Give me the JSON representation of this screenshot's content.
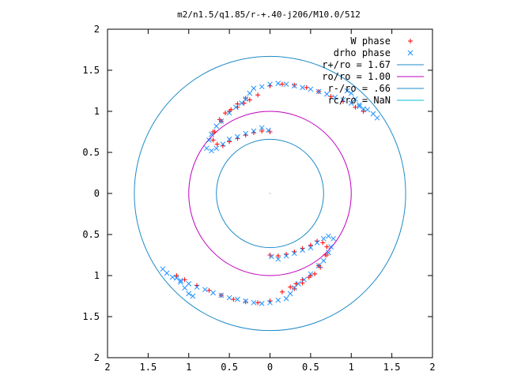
{
  "chart_data": {
    "type": "scatter",
    "title": "m2/n1.5/q1.85/r-+.40-j206/M10.0/512",
    "xlim": [
      -2,
      2
    ],
    "ylim": [
      -2,
      2
    ],
    "x_tick_labels": [
      "2",
      "1.5",
      "1",
      "0.5",
      "0",
      "0.5",
      "1",
      "1.5",
      "2"
    ],
    "y_tick_labels": [
      "2",
      "1.5",
      "1",
      "0.5",
      "0",
      "0.5",
      "1",
      "1.5",
      "2"
    ],
    "tick_values": [
      -2,
      -1.5,
      -1,
      -0.5,
      0,
      0.5,
      1,
      1.5,
      2
    ],
    "grid": false,
    "legend_position": "top-right",
    "legend": [
      {
        "label": "W phase",
        "marker": "plus",
        "color": "#ff0000"
      },
      {
        "label": "drho phase",
        "marker": "cross",
        "color": "#1e90ff"
      },
      {
        "label": "r+/ro = 1.67",
        "marker": "line",
        "color": "#1f8bc8"
      },
      {
        "label": "ro/ro = 1.00",
        "marker": "line",
        "color": "#c000c0"
      },
      {
        "label": "r-/ro = .66",
        "marker": "line",
        "color": "#1f8bc8"
      },
      {
        "label": "rc/ro = NaN",
        "marker": "line",
        "color": "#00c0d8"
      }
    ],
    "circles": [
      {
        "name": "r+/ro = 1.67",
        "r": 1.67,
        "color": "#1f8bc8"
      },
      {
        "name": "ro/ro = 1.00",
        "r": 1.0,
        "color": "#c000c0"
      },
      {
        "name": "r-/ro = .66",
        "r": 0.66,
        "color": "#1f8bc8"
      }
    ],
    "series": [
      {
        "name": "W phase",
        "marker": "plus",
        "color": "#ff0000",
        "points": [
          [
            0.0,
            0.75
          ],
          [
            -0.1,
            0.76
          ],
          [
            -0.2,
            0.74
          ],
          [
            -0.3,
            0.71
          ],
          [
            -0.4,
            0.67
          ],
          [
            -0.5,
            0.63
          ],
          [
            -0.58,
            0.58
          ],
          [
            -0.65,
            0.6
          ],
          [
            -0.7,
            0.65
          ],
          [
            -0.68,
            0.75
          ],
          [
            -0.6,
            0.88
          ],
          [
            -0.5,
            1.0
          ],
          [
            -0.4,
            1.09
          ],
          [
            -0.3,
            1.16
          ],
          [
            -0.15,
            1.2
          ],
          [
            0.0,
            1.31
          ],
          [
            0.15,
            1.33
          ],
          [
            0.3,
            1.32
          ],
          [
            0.45,
            1.29
          ],
          [
            0.6,
            1.24
          ],
          [
            0.75,
            1.18
          ],
          [
            0.9,
            1.12
          ],
          [
            1.05,
            1.05
          ],
          [
            1.15,
            1.0
          ],
          [
            -0.7,
            0.75
          ],
          [
            -0.62,
            0.9
          ],
          [
            -0.55,
            0.98
          ],
          [
            -0.48,
            1.02
          ],
          [
            -0.4,
            1.05
          ],
          [
            -0.32,
            1.1
          ],
          [
            -0.25,
            1.14
          ],
          [
            0.0,
            -0.75
          ],
          [
            0.1,
            -0.76
          ],
          [
            0.2,
            -0.74
          ],
          [
            0.3,
            -0.71
          ],
          [
            0.4,
            -0.67
          ],
          [
            0.5,
            -0.63
          ],
          [
            0.58,
            -0.58
          ],
          [
            0.65,
            -0.6
          ],
          [
            0.7,
            -0.65
          ],
          [
            0.68,
            -0.75
          ],
          [
            0.6,
            -0.88
          ],
          [
            0.5,
            -1.0
          ],
          [
            0.4,
            -1.09
          ],
          [
            0.3,
            -1.16
          ],
          [
            0.15,
            -1.2
          ],
          [
            0.0,
            -1.31
          ],
          [
            -0.15,
            -1.33
          ],
          [
            -0.3,
            -1.32
          ],
          [
            -0.45,
            -1.29
          ],
          [
            -0.6,
            -1.24
          ],
          [
            -0.75,
            -1.18
          ],
          [
            -0.9,
            -1.12
          ],
          [
            -1.05,
            -1.05
          ],
          [
            -1.15,
            -1.0
          ],
          [
            0.7,
            -0.75
          ],
          [
            0.62,
            -0.9
          ],
          [
            0.55,
            -0.98
          ],
          [
            0.48,
            -1.02
          ],
          [
            0.4,
            -1.05
          ],
          [
            0.32,
            -1.1
          ],
          [
            0.25,
            -1.14
          ]
        ]
      },
      {
        "name": "drho phase",
        "marker": "cross",
        "color": "#1e90ff",
        "points": [
          [
            -0.02,
            0.77
          ],
          [
            -0.1,
            0.8
          ],
          [
            -0.2,
            0.76
          ],
          [
            -0.3,
            0.73
          ],
          [
            -0.4,
            0.69
          ],
          [
            -0.5,
            0.66
          ],
          [
            -0.58,
            0.6
          ],
          [
            -0.66,
            0.55
          ],
          [
            -0.72,
            0.52
          ],
          [
            -0.78,
            0.55
          ],
          [
            -0.75,
            0.65
          ],
          [
            -0.72,
            0.72
          ],
          [
            -0.66,
            0.82
          ],
          [
            -0.6,
            0.88
          ],
          [
            -0.5,
            0.98
          ],
          [
            -0.42,
            1.05
          ],
          [
            -0.35,
            1.1
          ],
          [
            -0.3,
            1.15
          ],
          [
            -0.25,
            1.22
          ],
          [
            -0.2,
            1.28
          ],
          [
            -0.1,
            1.3
          ],
          [
            0.0,
            1.33
          ],
          [
            0.1,
            1.34
          ],
          [
            0.2,
            1.33
          ],
          [
            0.3,
            1.31
          ],
          [
            0.4,
            1.29
          ],
          [
            0.5,
            1.27
          ],
          [
            0.6,
            1.24
          ],
          [
            0.7,
            1.21
          ],
          [
            0.8,
            1.17
          ],
          [
            0.9,
            1.14
          ],
          [
            1.0,
            1.1
          ],
          [
            1.1,
            1.06
          ],
          [
            1.2,
            1.02
          ],
          [
            1.27,
            0.97
          ],
          [
            1.32,
            0.92
          ],
          [
            0.95,
            1.25
          ],
          [
            1.0,
            1.22
          ],
          [
            1.05,
            1.15
          ],
          [
            1.1,
            1.08
          ],
          [
            1.15,
            1.03
          ],
          [
            0.02,
            -0.77
          ],
          [
            0.1,
            -0.8
          ],
          [
            0.2,
            -0.76
          ],
          [
            0.3,
            -0.73
          ],
          [
            0.4,
            -0.69
          ],
          [
            0.5,
            -0.66
          ],
          [
            0.58,
            -0.6
          ],
          [
            0.66,
            -0.55
          ],
          [
            0.72,
            -0.52
          ],
          [
            0.78,
            -0.55
          ],
          [
            0.75,
            -0.65
          ],
          [
            0.72,
            -0.72
          ],
          [
            0.66,
            -0.82
          ],
          [
            0.6,
            -0.88
          ],
          [
            0.5,
            -0.98
          ],
          [
            0.42,
            -1.05
          ],
          [
            0.35,
            -1.1
          ],
          [
            0.3,
            -1.15
          ],
          [
            0.25,
            -1.22
          ],
          [
            0.2,
            -1.28
          ],
          [
            0.1,
            -1.3
          ],
          [
            0.0,
            -1.33
          ],
          [
            -0.1,
            -1.34
          ],
          [
            -0.2,
            -1.33
          ],
          [
            -0.3,
            -1.31
          ],
          [
            -0.4,
            -1.29
          ],
          [
            -0.5,
            -1.27
          ],
          [
            -0.6,
            -1.24
          ],
          [
            -0.7,
            -1.21
          ],
          [
            -0.8,
            -1.17
          ],
          [
            -0.9,
            -1.14
          ],
          [
            -1.0,
            -1.1
          ],
          [
            -1.1,
            -1.06
          ],
          [
            -1.2,
            -1.02
          ],
          [
            -1.27,
            -0.97
          ],
          [
            -1.32,
            -0.92
          ],
          [
            -0.95,
            -1.25
          ],
          [
            -1.0,
            -1.22
          ],
          [
            -1.05,
            -1.15
          ],
          [
            -1.1,
            -1.08
          ],
          [
            -1.15,
            -1.03
          ]
        ]
      }
    ]
  }
}
